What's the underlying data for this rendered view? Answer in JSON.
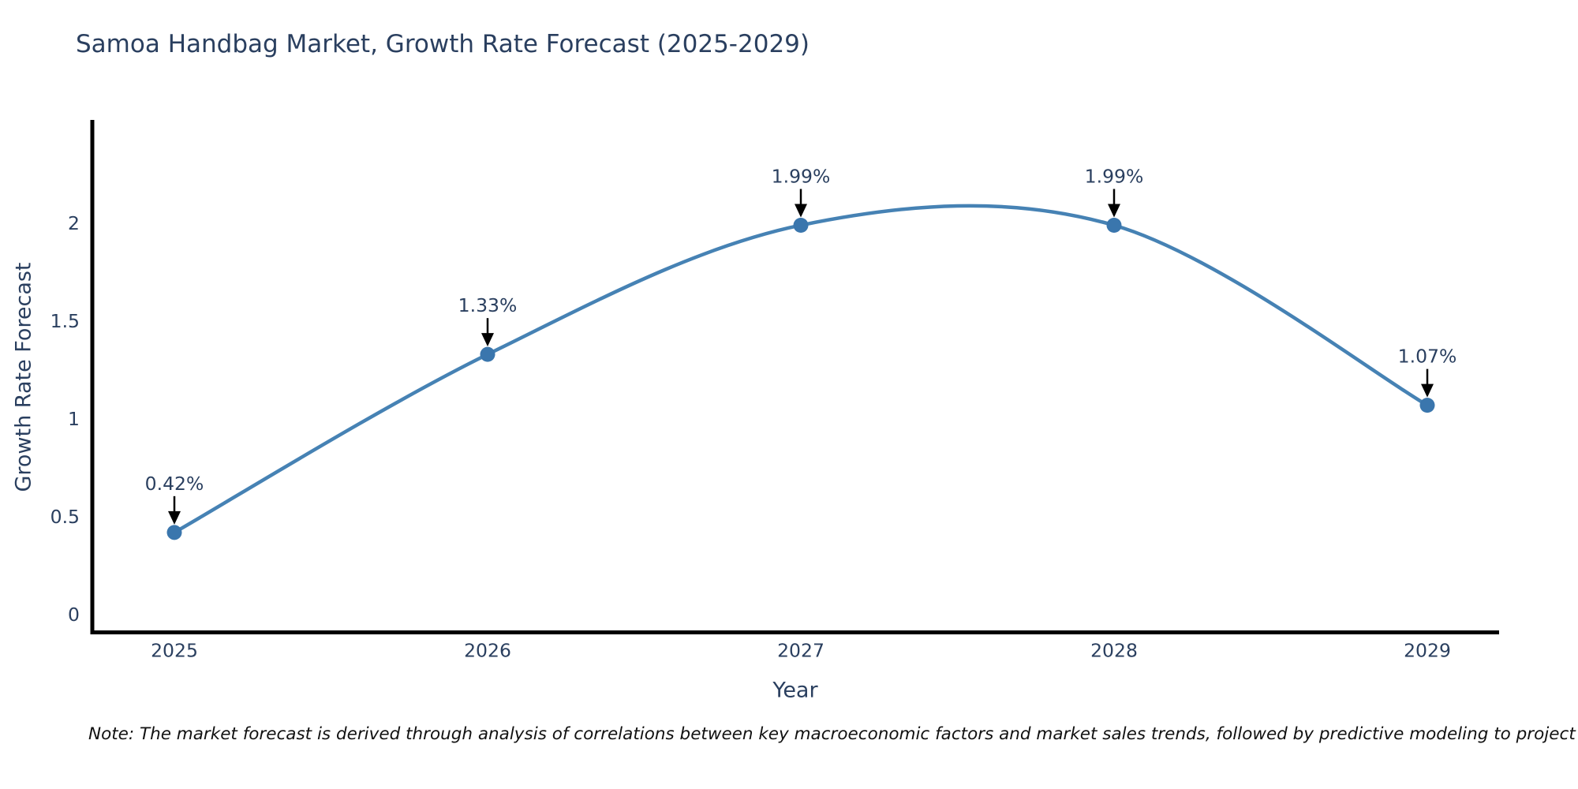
{
  "title": "Samoa Handbag Market, Growth Rate Forecast (2025-2029)",
  "note": "Note: The market forecast is derived through analysis of correlations between key macroeconomic factors and market sales trends, followed by predictive modeling to project future sales",
  "chart_data": {
    "type": "line",
    "title": "Samoa Handbag Market, Growth Rate Forecast (2025-2029)",
    "xlabel": "Year",
    "ylabel": "Growth Rate Forecast",
    "x": [
      2025,
      2026,
      2027,
      2028,
      2029
    ],
    "values": [
      0.42,
      1.33,
      1.99,
      1.99,
      1.07
    ],
    "point_labels": [
      "0.42%",
      "1.33%",
      "1.99%",
      "1.99%",
      "1.07%"
    ],
    "xtick_labels": [
      "2025",
      "2026",
      "2027",
      "2028",
      "2029"
    ],
    "ytick_values": [
      0,
      0.5,
      1,
      1.5,
      2
    ],
    "ytick_labels": [
      "0",
      "0.5",
      "1",
      "1.5",
      "2"
    ],
    "ylim": [
      0,
      2.55
    ],
    "grid": false,
    "legend_position": "none",
    "smooth_spline": true,
    "colors": {
      "line": "#4682b4",
      "marker": "#3a76ad",
      "axis": "#000000",
      "text": "#2a3f5f",
      "annotation_arrow": "#000000"
    }
  }
}
